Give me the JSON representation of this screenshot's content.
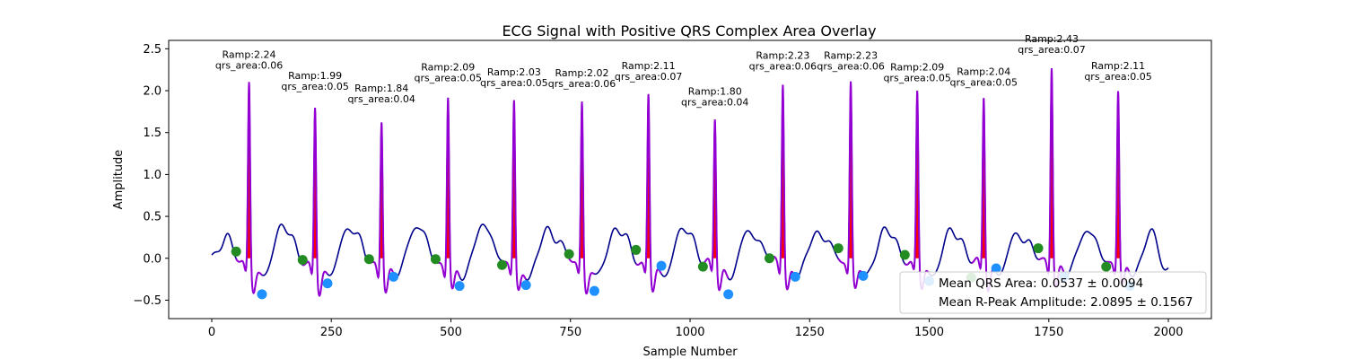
{
  "chart_data": {
    "type": "line",
    "title": "ECG Signal with Positive QRS Complex Area Overlay",
    "xlabel": "Sample Number",
    "ylabel": "Amplitude",
    "xlim": [
      -90,
      2090
    ],
    "ylim": [
      -0.72,
      2.6
    ],
    "xticks": [
      0,
      250,
      500,
      750,
      1000,
      1250,
      1500,
      1750,
      2000
    ],
    "yticks": [
      -0.5,
      0.0,
      0.5,
      1.0,
      1.5,
      2.0,
      2.5
    ],
    "ytick_labels": [
      "−0.5",
      "0.0",
      "0.5",
      "1.0",
      "1.5",
      "2.0",
      "2.5"
    ],
    "grid": false,
    "legend_position": "lower-right",
    "colors": {
      "signal": "#00008b",
      "qrs_segment": "#9400d3",
      "area_fill": "#ff0000",
      "onset_marker": "#228b22",
      "offset_marker": "#1e90ff"
    },
    "peaks": [
      {
        "x": 78,
        "y": 2.24,
        "ramp_label": "Ramp:2.24",
        "area_label": "qrs_area:0.06",
        "onset": [
          51,
          0.08
        ],
        "offset": [
          105,
          -0.43
        ]
      },
      {
        "x": 216,
        "y": 1.99,
        "ramp_label": "Ramp:1.99",
        "area_label": "qrs_area:0.05",
        "onset": [
          190,
          -0.02
        ],
        "offset": [
          242,
          -0.3
        ]
      },
      {
        "x": 355,
        "y": 1.84,
        "ramp_label": "Ramp:1.84",
        "area_label": "qrs_area:0.04",
        "onset": [
          329,
          -0.01
        ],
        "offset": [
          380,
          -0.22
        ]
      },
      {
        "x": 494,
        "y": 2.09,
        "ramp_label": "Ramp:2.09",
        "area_label": "qrs_area:0.05",
        "onset": [
          468,
          -0.01
        ],
        "offset": [
          518,
          -0.33
        ]
      },
      {
        "x": 632,
        "y": 2.03,
        "ramp_label": "Ramp:2.03",
        "area_label": "qrs_area:0.05",
        "onset": [
          607,
          -0.08
        ],
        "offset": [
          657,
          -0.32
        ]
      },
      {
        "x": 774,
        "y": 2.02,
        "ramp_label": "Ramp:2.02",
        "area_label": "qrs_area:0.06",
        "onset": [
          747,
          0.05
        ],
        "offset": [
          800,
          -0.39
        ]
      },
      {
        "x": 913,
        "y": 2.11,
        "ramp_label": "Ramp:2.11",
        "area_label": "qrs_area:0.07",
        "onset": [
          887,
          0.1
        ],
        "offset": [
          940,
          -0.09
        ]
      },
      {
        "x": 1052,
        "y": 1.8,
        "ramp_label": "Ramp:1.80",
        "area_label": "qrs_area:0.04",
        "onset": [
          1027,
          -0.1
        ],
        "offset": [
          1080,
          -0.43
        ]
      },
      {
        "x": 1194,
        "y": 2.23,
        "ramp_label": "Ramp:2.23",
        "area_label": "qrs_area:0.06",
        "onset": [
          1166,
          0.0
        ],
        "offset": [
          1220,
          -0.22
        ]
      },
      {
        "x": 1336,
        "y": 2.23,
        "ramp_label": "Ramp:2.23",
        "area_label": "qrs_area:0.06",
        "onset": [
          1310,
          0.12
        ],
        "offset": [
          1362,
          -0.21
        ]
      },
      {
        "x": 1475,
        "y": 2.09,
        "ramp_label": "Ramp:2.09",
        "area_label": "qrs_area:0.05",
        "onset": [
          1449,
          0.04
        ],
        "offset": [
          1500,
          -0.27
        ]
      },
      {
        "x": 1614,
        "y": 2.04,
        "ramp_label": "Ramp:2.04",
        "area_label": "qrs_area:0.05",
        "onset": [
          1588,
          -0.23
        ],
        "offset": [
          1640,
          -0.12
        ]
      },
      {
        "x": 1756,
        "y": 2.43,
        "ramp_label": "Ramp:2.43",
        "area_label": "qrs_area:0.07",
        "onset": [
          1728,
          0.12
        ],
        "offset": [
          1782,
          -0.22
        ]
      },
      {
        "x": 1895,
        "y": 2.11,
        "ramp_label": "Ramp:2.11",
        "area_label": "qrs_area:0.05",
        "onset": [
          1870,
          -0.1
        ],
        "offset": [
          1920,
          -0.33
        ]
      }
    ],
    "legend": [
      {
        "label": "Mean QRS Area: 0.0537 ± 0.0094"
      },
      {
        "label": "Mean R-Peak Amplitude: 2.0895 ± 0.1567"
      }
    ],
    "summary": {
      "mean_qrs_area": 0.0537,
      "std_qrs_area": 0.0094,
      "mean_r_peak_amplitude": 2.0895,
      "std_r_peak_amplitude": 0.1567
    }
  }
}
